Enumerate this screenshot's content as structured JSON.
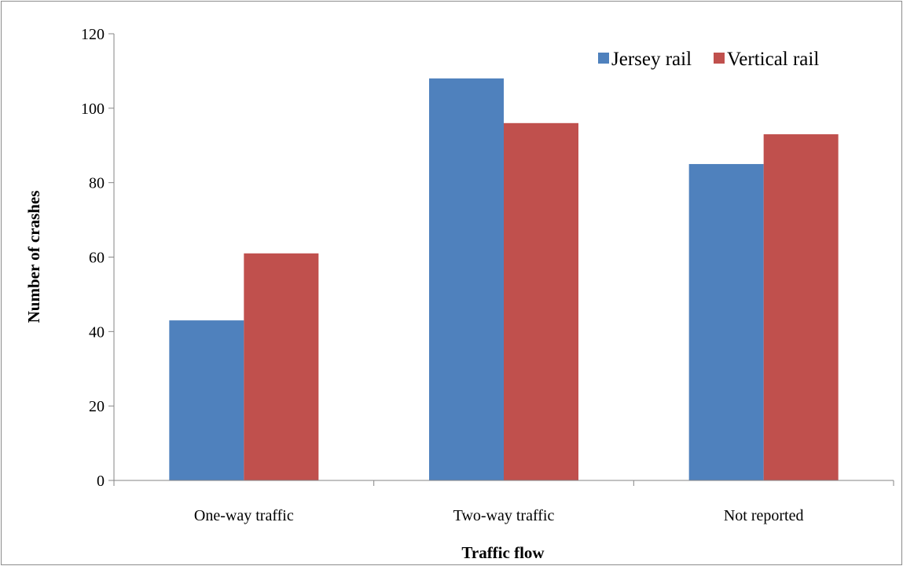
{
  "chart_data": {
    "type": "bar",
    "categories": [
      "One-way traffic",
      "Two-way traffic",
      "Not reported"
    ],
    "series": [
      {
        "name": "Jersey rail",
        "values": [
          43,
          108,
          85
        ],
        "color": "#4f81bd"
      },
      {
        "name": "Vertical rail",
        "values": [
          61,
          96,
          93
        ],
        "color": "#c0504d"
      }
    ],
    "xlabel": "Traffic flow",
    "ylabel": "Number of crashes",
    "ylim": [
      0,
      120
    ],
    "yticks": [
      0,
      20,
      40,
      60,
      80,
      100,
      120
    ],
    "grid": false,
    "legend_position": "top-right"
  }
}
